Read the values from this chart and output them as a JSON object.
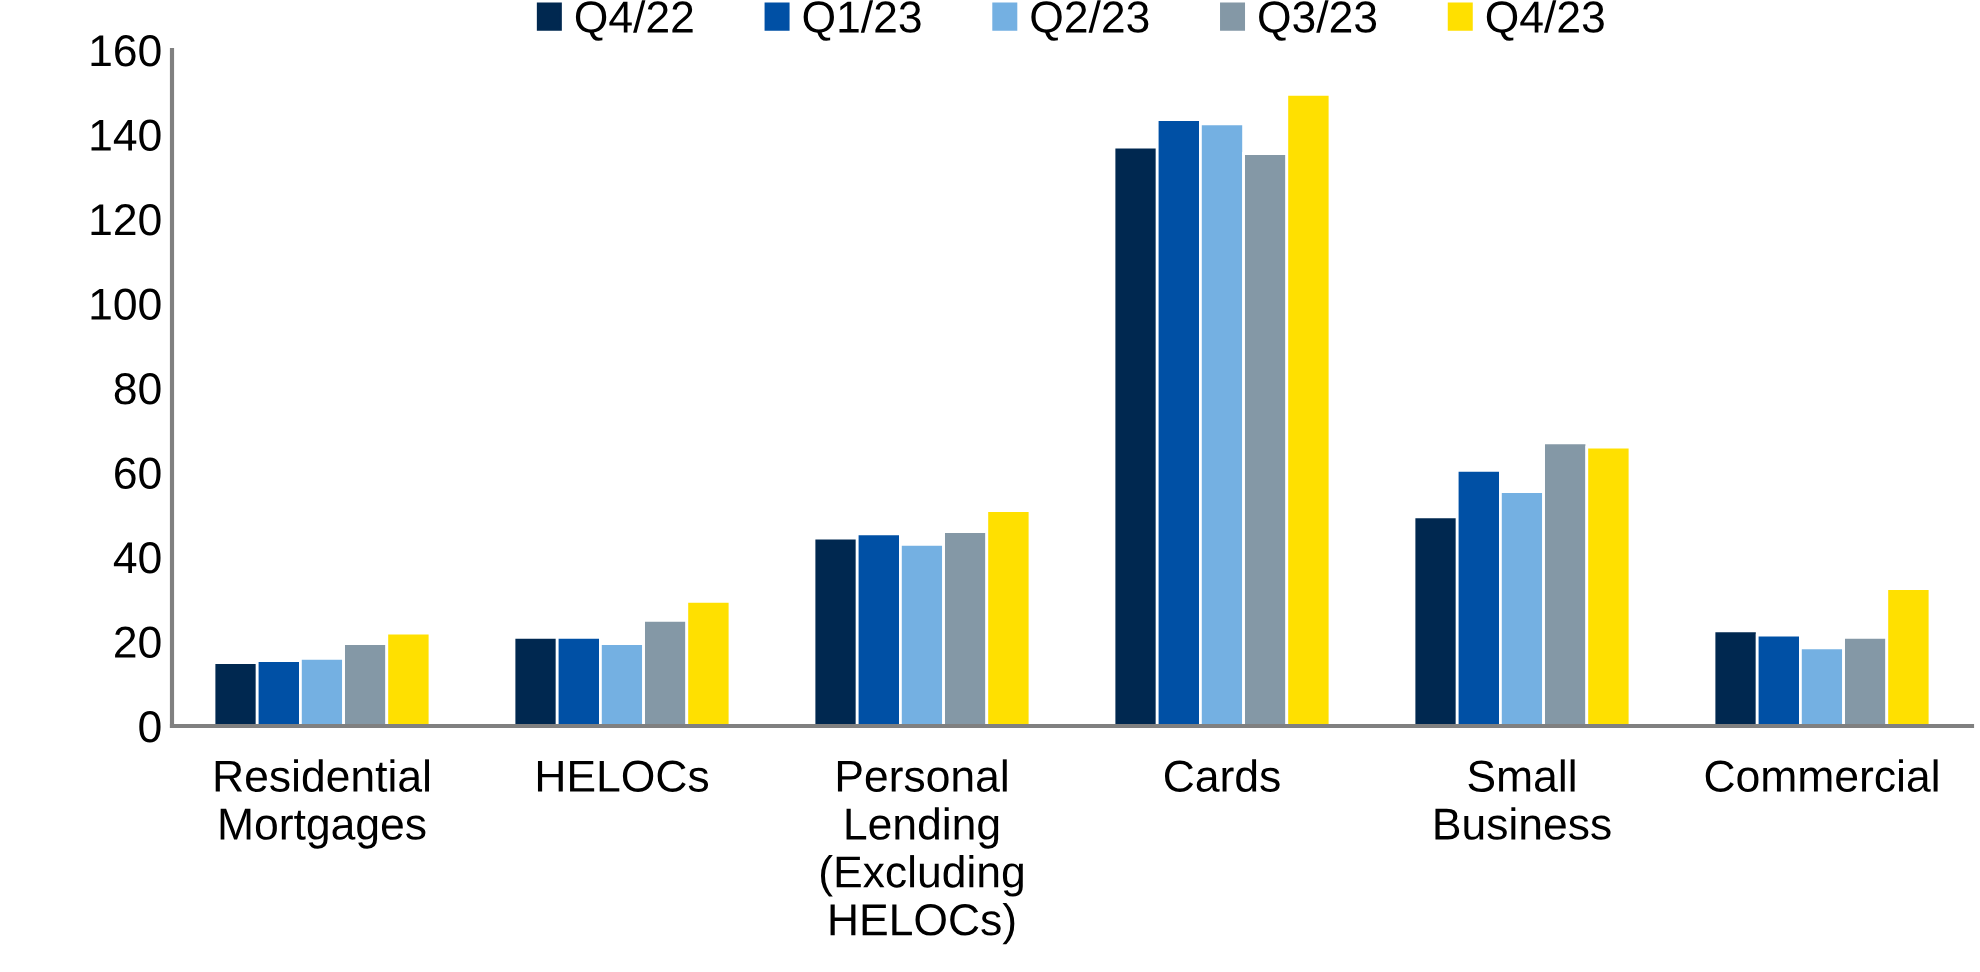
{
  "chart_data": {
    "type": "bar",
    "categories": [
      "Residential\nMortgages",
      "HELOCs",
      "Personal\nLending\n(Excluding\nHELOCs)",
      "Cards",
      "Small\nBusiness",
      "Commercial"
    ],
    "series": [
      {
        "name": "Q4/22",
        "color": "#002850",
        "values": [
          15,
          21,
          44.5,
          137,
          49.5,
          22.5
        ]
      },
      {
        "name": "Q1/23",
        "color": "#0050a5",
        "values": [
          15.5,
          21,
          45.5,
          143.5,
          60.5,
          21.5
        ]
      },
      {
        "name": "Q2/23",
        "color": "#74b0e2",
        "values": [
          16,
          19.5,
          43,
          142.5,
          55.5,
          18.5
        ]
      },
      {
        "name": "Q3/23",
        "color": "#8498a6",
        "values": [
          19.5,
          25,
          46,
          135.5,
          67,
          21
        ]
      },
      {
        "name": "Q4/23",
        "color": "#ffe000",
        "values": [
          22,
          29.5,
          51,
          149.5,
          66,
          32.5
        ]
      }
    ],
    "ylim": [
      0,
      160
    ],
    "yticks": [
      0,
      20,
      40,
      60,
      80,
      100,
      120,
      140,
      160
    ],
    "grid": false,
    "legend": "top"
  }
}
